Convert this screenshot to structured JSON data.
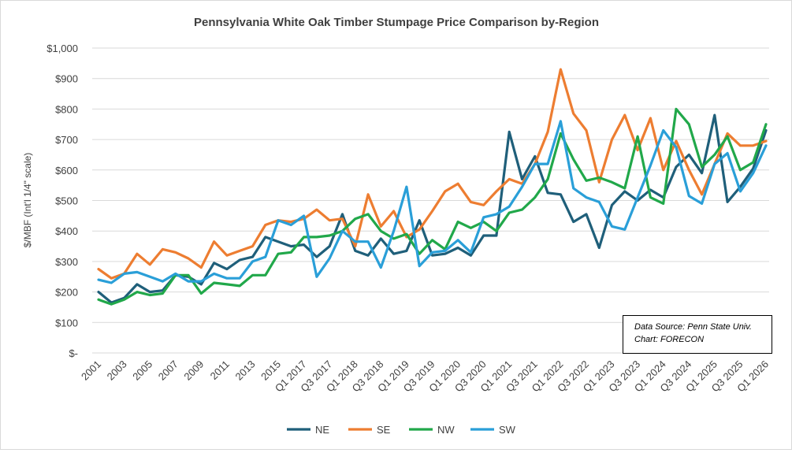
{
  "chart_data": {
    "type": "line",
    "title": "Pennsylvania White Oak Timber Stumpage Price Comparison by-Region",
    "ylabel": "$/MBF (Int'l 1/4\" scale)",
    "xlabel": "",
    "ylim": [
      0,
      1000
    ],
    "y_ticks": [
      "$-",
      "$100",
      "$200",
      "$300",
      "$400",
      "$500",
      "$600",
      "$700",
      "$800",
      "$900",
      "$1,000"
    ],
    "grid": "horizontal",
    "legend_position": "bottom",
    "x": [
      "2001",
      "2002",
      "2003",
      "2004",
      "2005",
      "2006",
      "2007",
      "2008",
      "2009",
      "2010",
      "2011",
      "2012",
      "2013",
      "2014",
      "2015",
      "2016",
      "Q1 2017",
      "Q2 2017",
      "Q3 2017",
      "Q4 2017",
      "Q1 2018",
      "Q2 2018",
      "Q3 2018",
      "Q4 2018",
      "Q1 2019",
      "Q2 2019",
      "Q3 2019",
      "Q4 2019",
      "Q1 2020",
      "Q2 2020",
      "Q3 2020",
      "Q4 2020",
      "Q1 2021",
      "Q2 2021",
      "Q3 2021",
      "Q4 2021",
      "Q1 2022",
      "Q2 2022",
      "Q3 2022",
      "Q4 2022",
      "Q1 2023",
      "Q2 2023",
      "Q3 2023",
      "Q4 2023",
      "Q1 2024",
      "Q2 2024",
      "Q3 2024",
      "Q4 2024",
      "Q1 2025",
      "Q2 2025",
      "Q3 2025",
      "Q4 2025",
      "Q1 2026"
    ],
    "x_tick_labels": [
      "2001",
      "2003",
      "2005",
      "2007",
      "2009",
      "2011",
      "2013",
      "2015",
      "Q1 2017",
      "Q3 2017",
      "Q1 2018",
      "Q3 2018",
      "Q1 2019",
      "Q3 2019",
      "Q1 2020",
      "Q3 2020",
      "Q1 2021",
      "Q3 2021",
      "Q1 2022",
      "Q3 2022",
      "Q1 2023",
      "Q3 2023",
      "Q1 2024",
      "Q3 2024",
      "Q1 2025",
      "Q3 2025",
      "Q1 2026"
    ],
    "series": [
      {
        "name": "NE",
        "color": "#1f5f7a",
        "values": [
          200,
          165,
          180,
          225,
          200,
          205,
          255,
          250,
          225,
          295,
          275,
          305,
          315,
          380,
          365,
          350,
          355,
          315,
          350,
          455,
          335,
          320,
          375,
          325,
          335,
          435,
          320,
          325,
          345,
          320,
          385,
          385,
          725,
          570,
          645,
          525,
          520,
          430,
          455,
          345,
          485,
          530,
          500,
          535,
          510,
          610,
          650,
          590,
          780,
          495,
          545,
          605,
          730
        ]
      },
      {
        "name": "SE",
        "color": "#ed7d31",
        "values": [
          275,
          245,
          260,
          325,
          290,
          340,
          330,
          310,
          280,
          365,
          320,
          335,
          350,
          420,
          435,
          430,
          440,
          470,
          435,
          440,
          350,
          520,
          415,
          465,
          380,
          405,
          465,
          530,
          555,
          495,
          485,
          530,
          570,
          555,
          620,
          725,
          930,
          785,
          730,
          560,
          700,
          780,
          665,
          770,
          600,
          695,
          600,
          520,
          620,
          720,
          680,
          680,
          695
        ]
      },
      {
        "name": "NW",
        "color": "#21a84a",
        "values": [
          175,
          160,
          175,
          200,
          190,
          195,
          255,
          255,
          195,
          230,
          225,
          220,
          255,
          255,
          325,
          330,
          380,
          380,
          385,
          400,
          440,
          455,
          400,
          375,
          390,
          325,
          370,
          340,
          430,
          410,
          430,
          400,
          460,
          470,
          510,
          570,
          720,
          635,
          565,
          575,
          560,
          540,
          710,
          510,
          490,
          800,
          750,
          610,
          650,
          710,
          600,
          625,
          750
        ]
      },
      {
        "name": "SW",
        "color": "#2a9fd8",
        "values": [
          240,
          230,
          260,
          265,
          250,
          235,
          260,
          235,
          235,
          260,
          245,
          245,
          300,
          315,
          435,
          420,
          450,
          250,
          310,
          400,
          365,
          365,
          280,
          400,
          545,
          285,
          330,
          335,
          370,
          330,
          445,
          455,
          480,
          545,
          620,
          620,
          760,
          540,
          510,
          495,
          415,
          405,
          510,
          615,
          730,
          675,
          515,
          490,
          620,
          655,
          530,
          590,
          680
        ]
      }
    ],
    "note_lines": [
      "Data Source: Penn State Univ.",
      "Chart: FORECON"
    ]
  }
}
